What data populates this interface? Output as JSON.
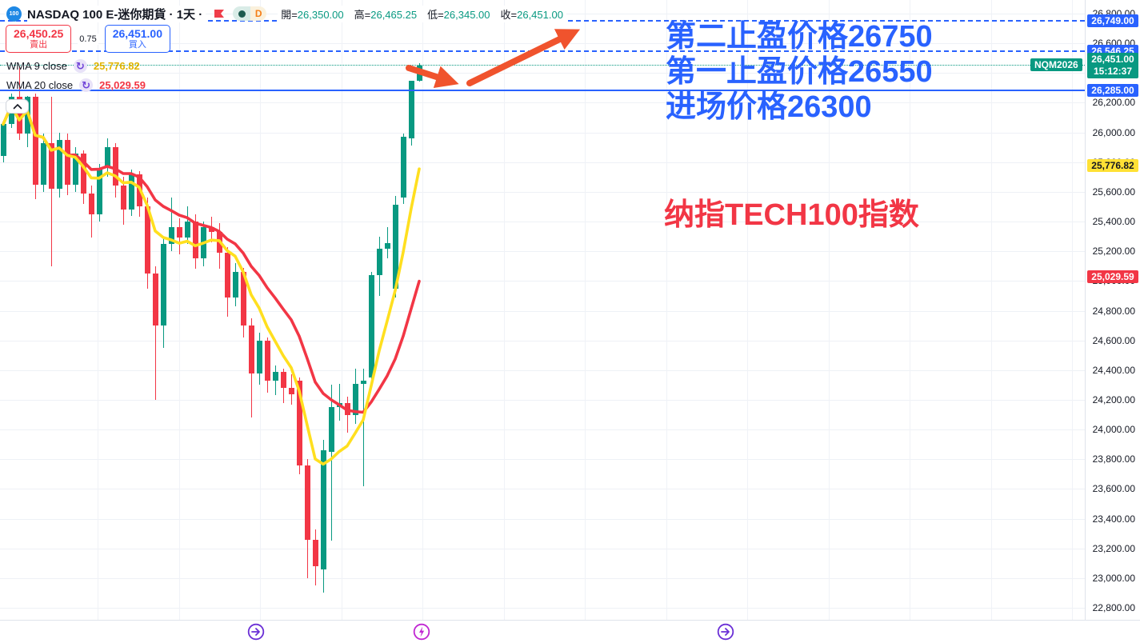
{
  "header": {
    "logo_text": "100",
    "title": "NASDAQ 100 E-迷你期貨 · 1天 ·",
    "mode_letter": "D",
    "ohlc": [
      {
        "label": "開=",
        "value": "26,350.00"
      },
      {
        "label": "高=",
        "value": "26,465.25"
      },
      {
        "label": "低=",
        "value": "26,345.00"
      },
      {
        "label": "收=",
        "value": "26,451.00"
      }
    ]
  },
  "order_panel": {
    "sell_price": "26,450.25",
    "sell_label": "賣出",
    "spread": "0.75",
    "buy_price": "26,451.00",
    "buy_label": "買入"
  },
  "indicators": [
    {
      "label": "WMA 9 close",
      "value": "25,776.82"
    },
    {
      "label": "WMA 20 close",
      "value": "25,029.59"
    }
  ],
  "annotations": {
    "take_profit_2": "第二止盈价格26750",
    "take_profit_1": "第一止盈价格26550",
    "entry": "进场价格26300",
    "index_name": "纳指TECH100指数"
  },
  "symbol_label": "NQM2026",
  "current_price": {
    "price": 26451,
    "value": "26,451.00",
    "time": "15:12:37",
    "bg": "#089981"
  },
  "levels": [
    {
      "price": 26749,
      "label": "26,749.00",
      "style": "dashed",
      "color": "#2962ff",
      "label_bg": "#2962ff",
      "label_fg": "#ffffff"
    },
    {
      "price": 26546.25,
      "label": "26,546.25",
      "style": "dashed",
      "color": "#2962ff",
      "label_bg": "#2962ff",
      "label_fg": "#ffffff"
    },
    {
      "price": 26451,
      "style": "dotted",
      "color": "#089981"
    },
    {
      "price": 26285,
      "label": "26,285.00",
      "style": "solid",
      "color": "#2962ff",
      "label_bg": "#2962ff",
      "label_fg": "#ffffff"
    }
  ],
  "ma_labels": [
    {
      "price": 25776.82,
      "label": "25,776.82",
      "bg": "#ffe135",
      "fg": "#131722"
    },
    {
      "price": 25029.59,
      "label": "25,029.59",
      "bg": "#f23645",
      "fg": "#ffffff"
    }
  ],
  "time_axis": {
    "icons": [
      {
        "name": "forward-arrow-icon",
        "color": "#6a2fd6"
      },
      {
        "name": "lightning-icon",
        "color": "#c026d3"
      },
      {
        "name": "forward-arrow-icon",
        "color": "#6a2fd6"
      }
    ]
  },
  "chart_data": {
    "type": "candlestick",
    "title": "NASDAQ 100 E-mini futures (NQM2026), daily",
    "up_color": "#089981",
    "down_color": "#f23645",
    "wma9_color": "#ffdf1f",
    "wma20_color": "#f23645",
    "price_axis": {
      "min": 22800,
      "max": 26800,
      "tick_step": 200,
      "ticks": [
        {
          "p": 26800,
          "t": "26,800.00"
        },
        {
          "p": 26600,
          "t": "26,600.00"
        },
        {
          "p": 26400,
          "t": "26,400.00"
        },
        {
          "p": 26200,
          "t": "26,200.00"
        },
        {
          "p": 26000,
          "t": "26,000.00"
        },
        {
          "p": 25800,
          "t": "25,800.00"
        },
        {
          "p": 25600,
          "t": "25,600.00"
        },
        {
          "p": 25400,
          "t": "25,400.00"
        },
        {
          "p": 25200,
          "t": "25,200.00"
        },
        {
          "p": 25000,
          "t": "25,000.00"
        },
        {
          "p": 24800,
          "t": "24,800.00"
        },
        {
          "p": 24600,
          "t": "24,600.00"
        },
        {
          "p": 24400,
          "t": "24,400.00"
        },
        {
          "p": 24200,
          "t": "24,200.00"
        },
        {
          "p": 24000,
          "t": "24,000.00"
        },
        {
          "p": 23800,
          "t": "23,800.00"
        },
        {
          "p": 23600,
          "t": "23,600.00"
        },
        {
          "p": 23400,
          "t": "23,400.00"
        },
        {
          "p": 23200,
          "t": "23,200.00"
        },
        {
          "p": 23000,
          "t": "23,000.00"
        },
        {
          "p": 22800,
          "t": "22,800.00"
        }
      ]
    },
    "candles_ohlc": [
      [
        25840,
        26075,
        25800,
        26055
      ],
      [
        26055,
        26260,
        26030,
        26240
      ],
      [
        26240,
        26445,
        25950,
        25990
      ],
      [
        25990,
        26245,
        25900,
        26240
      ],
      [
        26240,
        26260,
        25550,
        25650
      ],
      [
        25650,
        25995,
        25600,
        25930
      ],
      [
        25930,
        26240,
        25100,
        25620
      ],
      [
        25620,
        26000,
        25560,
        25950
      ],
      [
        25950,
        25990,
        25580,
        25650
      ],
      [
        25650,
        25900,
        25600,
        25860
      ],
      [
        25860,
        25880,
        25520,
        25590
      ],
      [
        25590,
        25640,
        25290,
        25450
      ],
      [
        25450,
        25790,
        25400,
        25760
      ],
      [
        25760,
        25960,
        25700,
        25900
      ],
      [
        25900,
        25930,
        25560,
        25640
      ],
      [
        25640,
        25700,
        25380,
        25480
      ],
      [
        25480,
        25750,
        25440,
        25720
      ],
      [
        25720,
        25740,
        25430,
        25500
      ],
      [
        25500,
        25560,
        24950,
        25050
      ],
      [
        25050,
        25100,
        24200,
        24700
      ],
      [
        24700,
        25300,
        24550,
        25250
      ],
      [
        25250,
        25560,
        25200,
        25360
      ],
      [
        25360,
        25420,
        25180,
        25290
      ],
      [
        25290,
        25500,
        25250,
        25400
      ],
      [
        25400,
        25450,
        25080,
        25150
      ],
      [
        25150,
        25400,
        25100,
        25360
      ],
      [
        25360,
        25430,
        25260,
        25330
      ],
      [
        25330,
        25390,
        25080,
        25190
      ],
      [
        25190,
        25230,
        24760,
        24890
      ],
      [
        24890,
        25120,
        24830,
        25060
      ],
      [
        25060,
        25090,
        24620,
        24700
      ],
      [
        24700,
        24750,
        24080,
        24380
      ],
      [
        24380,
        24650,
        24300,
        24600
      ],
      [
        24600,
        24620,
        24250,
        24330
      ],
      [
        24330,
        24430,
        24230,
        24390
      ],
      [
        24390,
        24410,
        24180,
        24280
      ],
      [
        24280,
        24370,
        24170,
        24240
      ],
      [
        24330,
        24350,
        23700,
        23760
      ],
      [
        23760,
        23800,
        23000,
        23260
      ],
      [
        23260,
        23330,
        22950,
        23080
      ],
      [
        23060,
        23930,
        22900,
        23860
      ],
      [
        23850,
        24300,
        23250,
        24150
      ],
      [
        24150,
        24310,
        24060,
        24180
      ],
      [
        24180,
        24220,
        23980,
        24100
      ],
      [
        24100,
        24410,
        24040,
        24310
      ],
      [
        24310,
        24410,
        23620,
        24330
      ],
      [
        24350,
        25060,
        24330,
        25040
      ],
      [
        25040,
        25300,
        24900,
        25215
      ],
      [
        25215,
        25360,
        25150,
        25255
      ],
      [
        24950,
        25570,
        24890,
        25515
      ],
      [
        25560,
        25990,
        25520,
        25970
      ],
      [
        25960,
        26350,
        25910,
        26350
      ],
      [
        26350,
        26465.25,
        26345,
        26451
      ]
    ],
    "indicator_series": [
      {
        "name": "WMA 9 close",
        "window": 9,
        "last_value": 25776.82
      },
      {
        "name": "WMA 20 close",
        "window": 20,
        "last_value": 25029.59
      }
    ]
  }
}
